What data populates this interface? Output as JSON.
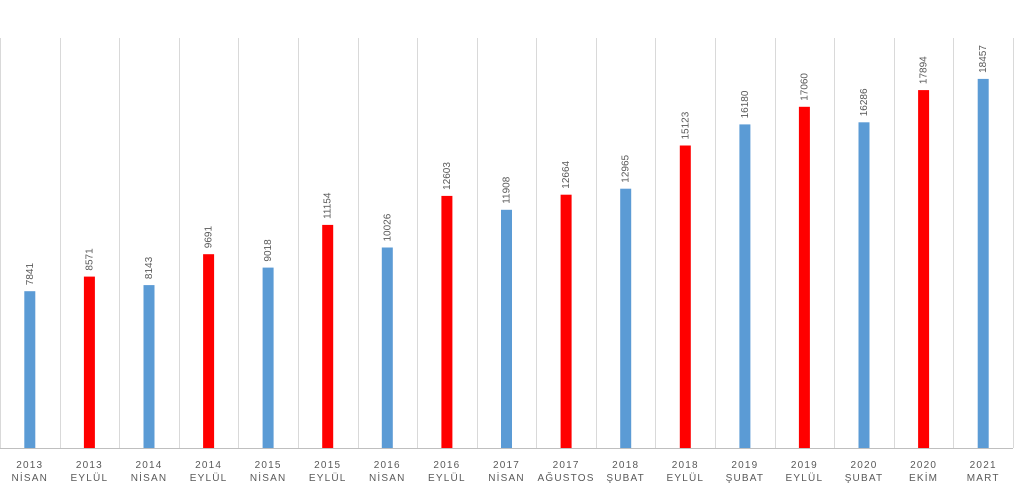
{
  "colors": {
    "blue": "#5b9bd5",
    "red": "#ff0000"
  },
  "chart_data": {
    "type": "bar",
    "title": "",
    "xlabel": "",
    "ylabel": "",
    "ylim": [
      0,
      20500
    ],
    "grid": "vertical category separators",
    "legend": "none",
    "categories": [
      {
        "year": "2013",
        "month": "NİSAN"
      },
      {
        "year": "2013",
        "month": "EYLÜL"
      },
      {
        "year": "2014",
        "month": "NİSAN"
      },
      {
        "year": "2014",
        "month": "EYLÜL"
      },
      {
        "year": "2015",
        "month": "NİSAN"
      },
      {
        "year": "2015",
        "month": "EYLÜL"
      },
      {
        "year": "2016",
        "month": "NİSAN"
      },
      {
        "year": "2016",
        "month": "EYLÜL"
      },
      {
        "year": "2017",
        "month": "NİSAN"
      },
      {
        "year": "2017",
        "month": "AĞUSTOS"
      },
      {
        "year": "2018",
        "month": "ŞUBAT"
      },
      {
        "year": "2018",
        "month": "EYLÜL"
      },
      {
        "year": "2019",
        "month": "ŞUBAT"
      },
      {
        "year": "2019",
        "month": "EYLÜL"
      },
      {
        "year": "2020",
        "month": "ŞUBAT"
      },
      {
        "year": "2020",
        "month": "EKİM"
      },
      {
        "year": "2021",
        "month": "MART"
      }
    ],
    "values": [
      7841,
      8571,
      8143,
      9691,
      9018,
      11154,
      10026,
      12603,
      11908,
      12664,
      12965,
      15123,
      16180,
      17060,
      16286,
      17894,
      18457
    ],
    "bar_colors": [
      "blue",
      "red",
      "blue",
      "red",
      "blue",
      "red",
      "blue",
      "red",
      "blue",
      "red",
      "blue",
      "red",
      "blue",
      "red",
      "blue",
      "red",
      "blue"
    ]
  }
}
